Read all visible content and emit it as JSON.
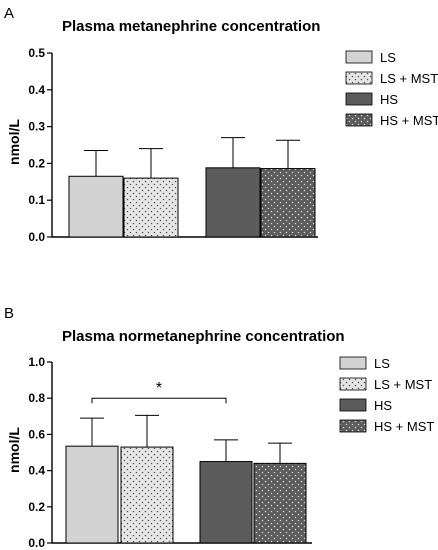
{
  "chart_data": [
    {
      "panel": "A",
      "type": "bar",
      "title": "Plasma metanephrine concentration",
      "ylabel": "nmol/L",
      "xlabel": "",
      "ylim": [
        0,
        0.5
      ],
      "yticks": [
        "0.0",
        "0.1",
        "0.2",
        "0.3",
        "0.4",
        "0.5"
      ],
      "series": [
        {
          "name": "LS",
          "values": [
            0.165
          ],
          "error": [
            0.07
          ],
          "color": "#d3d3d3",
          "pattern": "none"
        },
        {
          "name": "LS + MST",
          "values": [
            0.16
          ],
          "error": [
            0.08
          ],
          "color": "#e6e6e6",
          "pattern": "dots-dark"
        },
        {
          "name": "HS",
          "values": [
            0.188
          ],
          "error": [
            0.082
          ],
          "color": "#5c5c5c",
          "pattern": "none"
        },
        {
          "name": "HS + MST",
          "values": [
            0.186
          ],
          "error": [
            0.077
          ],
          "color": "#5c5c5c",
          "pattern": "dots-light"
        }
      ],
      "grid": false,
      "legend_position": "right",
      "annotations": []
    },
    {
      "panel": "B",
      "type": "bar",
      "title": "Plasma normetanephrine concentration",
      "ylabel": "nmol/L",
      "xlabel": "",
      "ylim": [
        0,
        1.0
      ],
      "yticks": [
        "0.0",
        "0.2",
        "0.4",
        "0.6",
        "0.8",
        "1.0"
      ],
      "series": [
        {
          "name": "LS",
          "values": [
            0.535
          ],
          "error": [
            0.155
          ],
          "color": "#d3d3d3",
          "pattern": "none"
        },
        {
          "name": "LS + MST",
          "values": [
            0.53
          ],
          "error": [
            0.175
          ],
          "color": "#e6e6e6",
          "pattern": "dots-dark"
        },
        {
          "name": "HS",
          "values": [
            0.45
          ],
          "error": [
            0.12
          ],
          "color": "#5c5c5c",
          "pattern": "none"
        },
        {
          "name": "HS + MST",
          "values": [
            0.44
          ],
          "error": [
            0.112
          ],
          "color": "#5c5c5c",
          "pattern": "dots-light"
        }
      ],
      "grid": false,
      "legend_position": "right",
      "annotations": [
        {
          "text": "*",
          "from_series": "LS",
          "to_series": "HS",
          "y": 0.8
        }
      ]
    }
  ]
}
